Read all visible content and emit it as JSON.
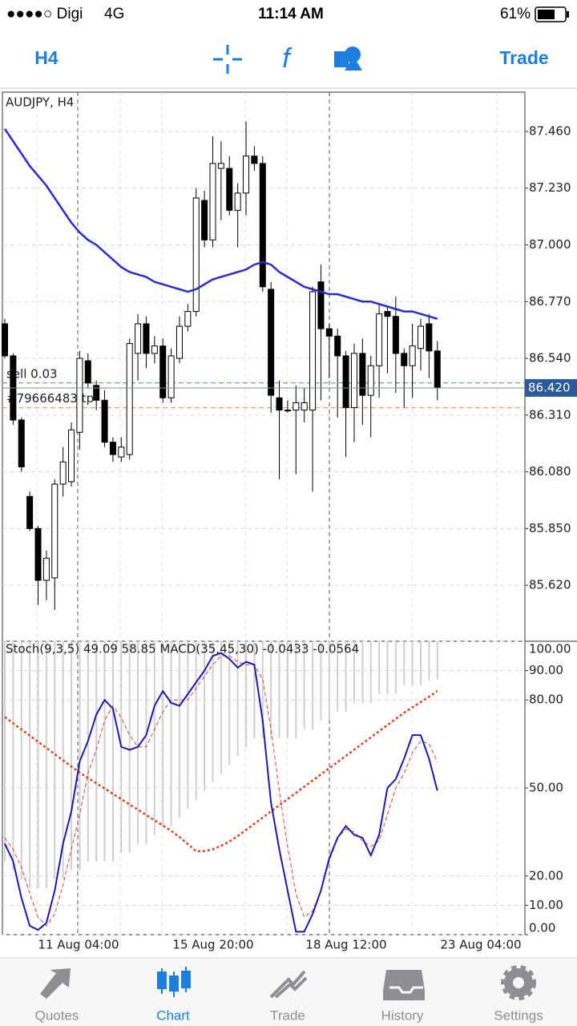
{
  "status_bar": {
    "carrier": "●●●●○ Digi",
    "network": "4G",
    "time": "11:14 AM",
    "battery": "61%"
  },
  "toolbar": {
    "timeframe": "H4",
    "trade": "Trade"
  },
  "chart_data": [
    {
      "type": "candlestick",
      "title": "AUDJPY, H4",
      "open": [
        86.68,
        86.55,
        86.29,
        85.98,
        85.85,
        85.64,
        85.65,
        86.03,
        86.04,
        86.24,
        86.53,
        86.43,
        86.37,
        86.2,
        86.14,
        86.15,
        86.56,
        86.68,
        86.56,
        86.59,
        86.38,
        86.54,
        86.67,
        86.73,
        87.18,
        87.02,
        87.31,
        87.31,
        87.14,
        87.21,
        87.36,
        87.33,
        86.82,
        86.38,
        86.33,
        86.33,
        86.33,
        86.33,
        86.85,
        86.66,
        86.63,
        86.55,
        86.34,
        86.56,
        86.39,
        86.51,
        86.73,
        86.71,
        86.56,
        86.51,
        86.58,
        86.68,
        86.57
      ],
      "high": [
        86.7,
        86.56,
        86.3,
        86.0,
        85.86,
        85.76,
        86.05,
        86.18,
        86.28,
        86.57,
        86.56,
        86.45,
        86.41,
        86.22,
        86.22,
        86.62,
        86.72,
        86.71,
        86.63,
        86.62,
        86.58,
        86.71,
        86.76,
        87.23,
        87.22,
        87.44,
        87.42,
        87.36,
        87.25,
        87.5,
        87.4,
        87.36,
        86.85,
        86.45,
        86.37,
        86.43,
        86.42,
        86.83,
        86.92,
        86.68,
        86.66,
        86.57,
        86.6,
        86.62,
        86.55,
        86.76,
        86.75,
        86.79,
        86.58,
        86.68,
        86.7,
        86.72,
        86.61
      ],
      "low": [
        86.54,
        86.27,
        86.08,
        85.84,
        85.54,
        85.56,
        85.52,
        85.98,
        86.02,
        86.17,
        86.42,
        86.33,
        86.18,
        86.12,
        86.12,
        86.13,
        86.45,
        86.5,
        86.52,
        86.36,
        86.36,
        86.52,
        86.65,
        86.71,
        86.99,
        86.99,
        87.1,
        87.12,
        86.99,
        87.12,
        87.3,
        86.81,
        86.32,
        86.05,
        86.32,
        86.07,
        86.28,
        86.0,
        86.37,
        86.46,
        86.3,
        86.14,
        86.2,
        86.27,
        86.22,
        86.38,
        86.48,
        86.4,
        86.34,
        86.38,
        86.49,
        86.46,
        86.37
      ],
      "close": [
        86.55,
        86.29,
        86.1,
        85.85,
        85.64,
        85.73,
        86.03,
        86.12,
        86.25,
        86.54,
        86.44,
        86.37,
        86.2,
        86.15,
        86.18,
        86.6,
        86.68,
        86.56,
        86.59,
        86.38,
        86.55,
        86.67,
        86.73,
        87.19,
        87.02,
        87.33,
        87.33,
        87.14,
        87.21,
        87.36,
        87.33,
        86.83,
        86.39,
        86.33,
        86.33,
        86.36,
        86.36,
        86.81,
        86.66,
        86.63,
        86.55,
        86.34,
        86.56,
        86.39,
        86.51,
        86.72,
        86.71,
        86.56,
        86.51,
        86.59,
        86.67,
        86.57,
        86.42
      ],
      "lines": [
        {
          "color": "#2a2ad0",
          "values": [
            87.47,
            87.42,
            87.37,
            87.32,
            87.28,
            87.24,
            87.19,
            87.14,
            87.09,
            87.05,
            87.02,
            87.0,
            86.97,
            86.94,
            86.91,
            86.89,
            86.88,
            86.87,
            86.85,
            86.84,
            86.83,
            86.82,
            86.81,
            86.82,
            86.84,
            86.86,
            86.87,
            86.88,
            86.89,
            86.9,
            86.92,
            86.93,
            86.92,
            86.89,
            86.87,
            86.85,
            86.83,
            86.82,
            86.81,
            86.8,
            86.8,
            86.79,
            86.78,
            86.77,
            86.77,
            86.76,
            86.75,
            86.74,
            86.73,
            86.73,
            86.72,
            86.71,
            86.7
          ]
        }
      ],
      "ylim": [
        85.393,
        87.619
      ],
      "yticks": [
        {
          "value": 85.62,
          "label": "85.620"
        },
        {
          "value": 85.85,
          "label": "85.850"
        },
        {
          "value": 86.08,
          "label": "86.080"
        },
        {
          "value": 86.31,
          "label": "86.310"
        },
        {
          "value": 86.54,
          "label": "86.540"
        },
        {
          "value": 86.77,
          "label": "86.770"
        },
        {
          "value": 87.0,
          "label": "87.000"
        },
        {
          "value": 87.23,
          "label": "87.230"
        },
        {
          "value": 87.46,
          "label": "87.460"
        }
      ],
      "grid": true,
      "current_price": {
        "value": 86.42,
        "label": "86.420"
      },
      "orders": [
        {
          "label": "sell 0.03",
          "price": 86.44,
          "color": "#3a9a5a"
        },
        {
          "label": "#79666483 tp",
          "price": 86.34,
          "color": "#f08a50"
        }
      ],
      "time_labels": [
        "11 Aug 04:00",
        "15 Aug 20:00",
        "18 Aug 12:00",
        "23 Aug 04:00"
      ]
    },
    {
      "type": "line",
      "title": "Stoch(9,3,5) 49.09 58.85 MACD(35,45,30) -0.0433 -0.0564",
      "series": [
        {
          "color": "#cfcfcf",
          "kind": "bar",
          "axis": "y2",
          "values": [
            -0.25,
            -0.26,
            -0.27,
            -0.28,
            -0.28,
            -0.28,
            -0.27,
            -0.27,
            -0.26,
            -0.26,
            -0.25,
            -0.25,
            -0.25,
            -0.25,
            -0.24,
            -0.24,
            -0.23,
            -0.23,
            -0.22,
            -0.21,
            -0.21,
            -0.2,
            -0.19,
            -0.18,
            -0.17,
            -0.16,
            -0.15,
            -0.14,
            -0.13,
            -0.12,
            -0.11,
            -0.11,
            -0.11,
            -0.11,
            -0.11,
            -0.11,
            -0.1,
            -0.1,
            -0.09,
            -0.09,
            -0.08,
            -0.08,
            -0.07,
            -0.07,
            -0.07,
            -0.06,
            -0.06,
            -0.06,
            -0.05,
            -0.05,
            -0.05,
            -0.045,
            -0.0433
          ]
        },
        {
          "color": "#e0401a",
          "dash": "dotted",
          "axis": "y2",
          "values": [
            -0.086,
            -0.093,
            -0.1,
            -0.107,
            -0.114,
            -0.121,
            -0.128,
            -0.135,
            -0.142,
            -0.149,
            -0.155,
            -0.161,
            -0.167,
            -0.173,
            -0.179,
            -0.185,
            -0.191,
            -0.197,
            -0.203,
            -0.209,
            -0.215,
            -0.222,
            -0.23,
            -0.238,
            -0.238,
            -0.236,
            -0.232,
            -0.227,
            -0.221,
            -0.214,
            -0.207,
            -0.2,
            -0.193,
            -0.186,
            -0.179,
            -0.172,
            -0.165,
            -0.158,
            -0.151,
            -0.144,
            -0.137,
            -0.13,
            -0.123,
            -0.116,
            -0.109,
            -0.102,
            -0.095,
            -0.088,
            -0.081,
            -0.075,
            -0.069,
            -0.063,
            -0.0564
          ]
        },
        {
          "color": "#e04040",
          "dash": "dashed",
          "values": [
            33,
            29,
            23,
            14,
            6,
            3,
            7,
            17,
            29,
            41,
            55,
            63,
            73,
            78,
            74,
            68,
            64,
            64,
            70,
            76,
            80,
            80,
            80,
            84,
            88,
            92,
            95,
            95,
            93,
            92,
            92,
            87,
            70,
            49,
            30,
            14,
            6,
            8,
            15,
            25,
            33,
            36,
            35,
            32,
            30,
            32,
            41,
            50,
            55,
            62,
            66,
            65,
            58.85
          ]
        },
        {
          "color": "#1a1ab0",
          "values": [
            31,
            25,
            12.5,
            3,
            1.6,
            4,
            15,
            31,
            42,
            59,
            66,
            75,
            80,
            77,
            64,
            63,
            64,
            68,
            78,
            83,
            79,
            78,
            82,
            86,
            90,
            95,
            96,
            94,
            91,
            93,
            92,
            73,
            45,
            29,
            15,
            1,
            1,
            7,
            15,
            26,
            33,
            37,
            34,
            33,
            27,
            34,
            50,
            53,
            60,
            68,
            68,
            60,
            49.09
          ]
        }
      ],
      "ylim": [
        0,
        100
      ],
      "yticks": [
        {
          "value": 0,
          "label": "0.00"
        },
        {
          "value": 10,
          "label": "10.00"
        },
        {
          "value": 20,
          "label": "20.00"
        },
        {
          "value": 50,
          "label": "50.00"
        },
        {
          "value": 80,
          "label": "80.00"
        },
        {
          "value": 90,
          "label": "90.00"
        },
        {
          "value": 100,
          "label": "100.00"
        }
      ],
      "y2lim": [
        -0.3327,
        0
      ],
      "grid": true
    }
  ],
  "tab_bar": {
    "tabs": [
      "Quotes",
      "Chart",
      "Trade",
      "History",
      "Settings"
    ],
    "active": "Chart"
  }
}
